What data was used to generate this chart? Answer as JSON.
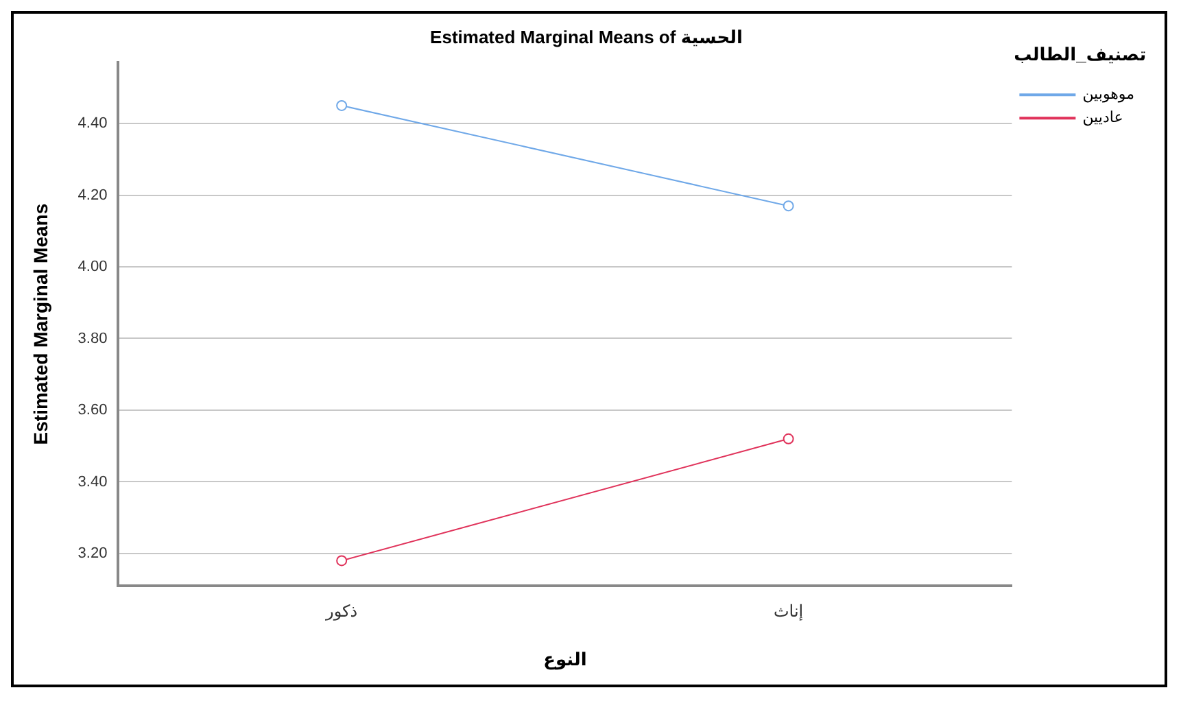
{
  "chart_data": {
    "type": "line",
    "title": "Estimated Marginal Means of الحسية",
    "xlabel": "النوع",
    "ylabel": "Estimated Marginal Means",
    "legend_title": "تصنيف_الطالب",
    "categories": [
      "ذكور",
      "إناث"
    ],
    "series": [
      {
        "name": "موهوبين",
        "color": "#6fa8e8",
        "values": [
          4.45,
          4.17
        ]
      },
      {
        "name": "عاديين",
        "color": "#e0325a",
        "values": [
          3.18,
          3.52
        ]
      }
    ],
    "ylim": [
      3.11,
      4.57
    ],
    "yticks": [
      {
        "value": 3.2,
        "label": "3.20"
      },
      {
        "value": 3.4,
        "label": "3.40"
      },
      {
        "value": 3.6,
        "label": "3.60"
      },
      {
        "value": 3.8,
        "label": "3.80"
      },
      {
        "value": 4.0,
        "label": "4.00"
      },
      {
        "value": 4.2,
        "label": "4.20"
      },
      {
        "value": 4.4,
        "label": "4.40"
      }
    ],
    "grid": "y",
    "legend": "top right",
    "marker": "circle",
    "line_style": "solid"
  }
}
